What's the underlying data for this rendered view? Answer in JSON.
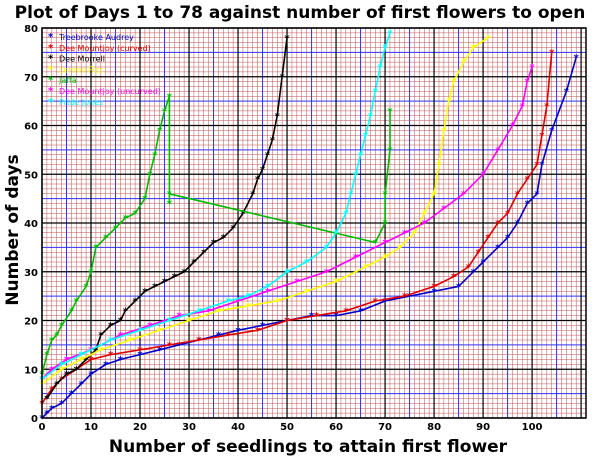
{
  "chart_data": {
    "type": "line",
    "title": "Plot of Days 1 to 78 against number of first flowers to open",
    "xlabel": "Number of seedlings to attain first flower",
    "ylabel": "Number of days",
    "xlim": [
      0,
      111
    ],
    "ylim": [
      0,
      80
    ],
    "xticks": [
      0,
      10,
      20,
      30,
      40,
      50,
      60,
      70,
      80,
      90,
      100
    ],
    "yticks": [
      0,
      10,
      20,
      30,
      40,
      50,
      60,
      70,
      80
    ],
    "grid": true,
    "legend_position": "top-left",
    "series": [
      {
        "name": "Treebrooke Audrey",
        "color": "#0000cc",
        "points": [
          [
            0,
            0
          ],
          [
            1,
            1
          ],
          [
            2,
            2
          ],
          [
            4,
            3
          ],
          [
            6,
            5
          ],
          [
            8,
            7
          ],
          [
            10,
            9
          ],
          [
            13,
            11
          ],
          [
            16,
            12
          ],
          [
            20,
            13
          ],
          [
            24,
            14
          ],
          [
            28,
            15
          ],
          [
            32,
            16
          ],
          [
            36,
            17
          ],
          [
            40,
            18
          ],
          [
            45,
            19
          ],
          [
            50,
            20
          ],
          [
            55,
            21
          ],
          [
            60,
            21
          ],
          [
            65,
            22
          ],
          [
            70,
            24
          ],
          [
            75,
            25
          ],
          [
            80,
            26
          ],
          [
            85,
            27
          ],
          [
            88,
            30
          ],
          [
            90,
            32
          ],
          [
            93,
            35
          ],
          [
            95,
            37
          ],
          [
            97,
            40
          ],
          [
            99,
            44
          ],
          [
            101,
            46
          ],
          [
            102,
            52
          ],
          [
            104,
            59
          ],
          [
            107,
            67
          ],
          [
            109,
            74
          ]
        ]
      },
      {
        "name": "Dee Mountjoy (curved)",
        "color": "#e00000",
        "points": [
          [
            0,
            3
          ],
          [
            2,
            6
          ],
          [
            4,
            8
          ],
          [
            7,
            10
          ],
          [
            10,
            12
          ],
          [
            14,
            13
          ],
          [
            20,
            14
          ],
          [
            26,
            15
          ],
          [
            32,
            16
          ],
          [
            38,
            17
          ],
          [
            44,
            18
          ],
          [
            50,
            20
          ],
          [
            56,
            21
          ],
          [
            62,
            22
          ],
          [
            68,
            24
          ],
          [
            74,
            25
          ],
          [
            80,
            27
          ],
          [
            84,
            29
          ],
          [
            87,
            31
          ],
          [
            89,
            34
          ],
          [
            91,
            37
          ],
          [
            93,
            40
          ],
          [
            95,
            42
          ],
          [
            97,
            46
          ],
          [
            99,
            49
          ],
          [
            101,
            52
          ],
          [
            102,
            58
          ],
          [
            103,
            64
          ],
          [
            104,
            75
          ]
        ]
      },
      {
        "name": "Dee Morrell",
        "color": "#000000",
        "points": [
          [
            1,
            4
          ],
          [
            3,
            7
          ],
          [
            5,
            9
          ],
          [
            7,
            10
          ],
          [
            9,
            12
          ],
          [
            11,
            14
          ],
          [
            12,
            17
          ],
          [
            14,
            19
          ],
          [
            16,
            20
          ],
          [
            17,
            22
          ],
          [
            19,
            24
          ],
          [
            21,
            26
          ],
          [
            23,
            27
          ],
          [
            25,
            28
          ],
          [
            27,
            29
          ],
          [
            29,
            30
          ],
          [
            31,
            32
          ],
          [
            33,
            34
          ],
          [
            35,
            36
          ],
          [
            37,
            37
          ],
          [
            39,
            39
          ],
          [
            41,
            42
          ],
          [
            43,
            46
          ],
          [
            44,
            49
          ],
          [
            45,
            51
          ],
          [
            46,
            54
          ],
          [
            47,
            57
          ],
          [
            48,
            62
          ],
          [
            49,
            70
          ],
          [
            50,
            78
          ]
        ]
      },
      {
        "name": "Lemon Fizz",
        "color": "#ffff00",
        "points": [
          [
            0,
            7
          ],
          [
            4,
            10
          ],
          [
            8,
            12
          ],
          [
            12,
            14
          ],
          [
            18,
            16
          ],
          [
            24,
            18
          ],
          [
            30,
            20
          ],
          [
            36,
            22
          ],
          [
            42,
            23
          ],
          [
            48,
            24
          ],
          [
            54,
            26
          ],
          [
            60,
            28
          ],
          [
            66,
            31
          ],
          [
            70,
            33
          ],
          [
            73,
            35
          ],
          [
            76,
            38
          ],
          [
            78,
            42
          ],
          [
            80,
            46
          ],
          [
            81,
            52
          ],
          [
            82,
            59
          ],
          [
            83,
            65
          ],
          [
            84,
            69
          ],
          [
            86,
            73
          ],
          [
            88,
            76
          ],
          [
            91,
            78
          ]
        ]
      },
      {
        "name": "Jaffa",
        "color": "#00bb00",
        "points": [
          [
            0,
            9
          ],
          [
            1,
            13
          ],
          [
            2,
            16
          ],
          [
            3,
            17
          ],
          [
            4,
            19
          ],
          [
            6,
            22
          ],
          [
            7,
            24
          ],
          [
            9,
            27
          ],
          [
            10,
            30
          ],
          [
            11,
            35
          ],
          [
            13,
            37
          ],
          [
            15,
            39
          ],
          [
            17,
            41
          ],
          [
            19,
            42
          ],
          [
            21,
            45
          ],
          [
            22,
            50
          ],
          [
            23,
            54
          ],
          [
            24,
            59
          ],
          [
            25,
            63
          ],
          [
            26,
            66
          ],
          [
            26,
            44
          ],
          [
            26,
            46
          ],
          [
            68,
            36
          ],
          [
            70,
            40
          ],
          [
            70,
            46
          ],
          [
            71,
            55
          ],
          [
            71,
            63
          ]
        ]
      },
      {
        "name": "Dee Mountjoy (uncurved)",
        "color": "#ff00ff",
        "points": [
          [
            0,
            8
          ],
          [
            2,
            10
          ],
          [
            5,
            12
          ],
          [
            10,
            14
          ],
          [
            16,
            17
          ],
          [
            22,
            19
          ],
          [
            28,
            21
          ],
          [
            34,
            22
          ],
          [
            40,
            24
          ],
          [
            46,
            26
          ],
          [
            52,
            28
          ],
          [
            58,
            30
          ],
          [
            64,
            33
          ],
          [
            70,
            36
          ],
          [
            74,
            38
          ],
          [
            78,
            40
          ],
          [
            82,
            43
          ],
          [
            86,
            46
          ],
          [
            90,
            50
          ],
          [
            93,
            55
          ],
          [
            96,
            60
          ],
          [
            98,
            64
          ],
          [
            99,
            69
          ],
          [
            100,
            72
          ]
        ]
      },
      {
        "name": "Pride Jones",
        "color": "#00ffff",
        "points": [
          [
            0,
            8
          ],
          [
            4,
            11
          ],
          [
            8,
            13
          ],
          [
            14,
            16
          ],
          [
            20,
            18
          ],
          [
            26,
            20
          ],
          [
            32,
            22
          ],
          [
            38,
            24
          ],
          [
            42,
            25
          ],
          [
            46,
            27
          ],
          [
            50,
            30
          ],
          [
            54,
            32
          ],
          [
            58,
            35
          ],
          [
            60,
            38
          ],
          [
            62,
            42
          ],
          [
            63,
            46
          ],
          [
            64,
            50
          ],
          [
            65,
            54
          ],
          [
            66,
            58
          ],
          [
            67,
            62
          ],
          [
            68,
            67
          ],
          [
            69,
            72
          ],
          [
            70,
            76
          ],
          [
            71,
            79
          ]
        ]
      }
    ]
  }
}
